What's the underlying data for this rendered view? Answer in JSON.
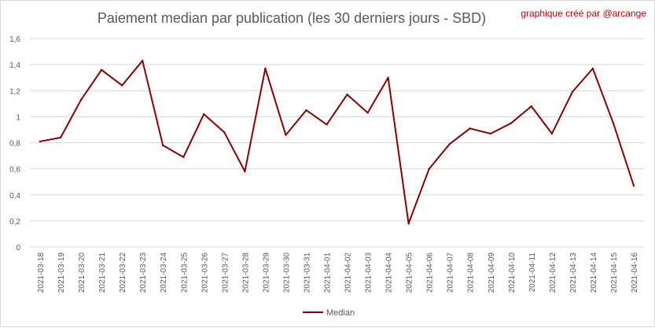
{
  "chart_data": {
    "type": "line",
    "title": "Paiement median par publication (les 30 derniers jours - SBD)",
    "credit": "graphique créé par @arcange",
    "xlabel": "",
    "ylabel": "",
    "ylim": [
      0,
      1.6
    ],
    "yticks": [
      0,
      0.2,
      0.4,
      0.6,
      0.8,
      1,
      1.2,
      1.4,
      1.6
    ],
    "ytick_labels": [
      "0",
      "0,2",
      "0,4",
      "0,6",
      "0,8",
      "1",
      "1,2",
      "1,4",
      "1,6"
    ],
    "grid": true,
    "legend_position": "bottom",
    "colors": {
      "line": "#8b0000",
      "grid": "#d9d9d9",
      "text": "#595959",
      "credit": "#c00000"
    },
    "categories": [
      "2021-03-18",
      "2021-03-19",
      "2021-03-20",
      "2021-03-21",
      "2021-03-22",
      "2021-03-23",
      "2021-03-24",
      "2021-03-25",
      "2021-03-26",
      "2021-03-27",
      "2021-03-28",
      "2021-03-29",
      "2021-03-30",
      "2021-03-31",
      "2021-04-01",
      "2021-04-02",
      "2021-04-03",
      "2021-04-04",
      "2021-04-05",
      "2021-04-06",
      "2021-04-07",
      "2021-04-08",
      "2021-04-09",
      "2021-04-10",
      "2021-04-11",
      "2021-04-12",
      "2021-04-13",
      "2021-04-14",
      "2021-04-15",
      "2021-04-16"
    ],
    "series": [
      {
        "name": "Median",
        "values": [
          0.81,
          0.84,
          1.13,
          1.36,
          1.24,
          1.43,
          0.78,
          0.69,
          1.02,
          0.88,
          0.58,
          1.37,
          0.86,
          1.05,
          0.94,
          1.17,
          1.03,
          1.3,
          0.18,
          0.6,
          0.79,
          0.91,
          0.87,
          0.95,
          1.08,
          0.87,
          1.19,
          1.37,
          0.95,
          0.47
        ]
      }
    ]
  }
}
